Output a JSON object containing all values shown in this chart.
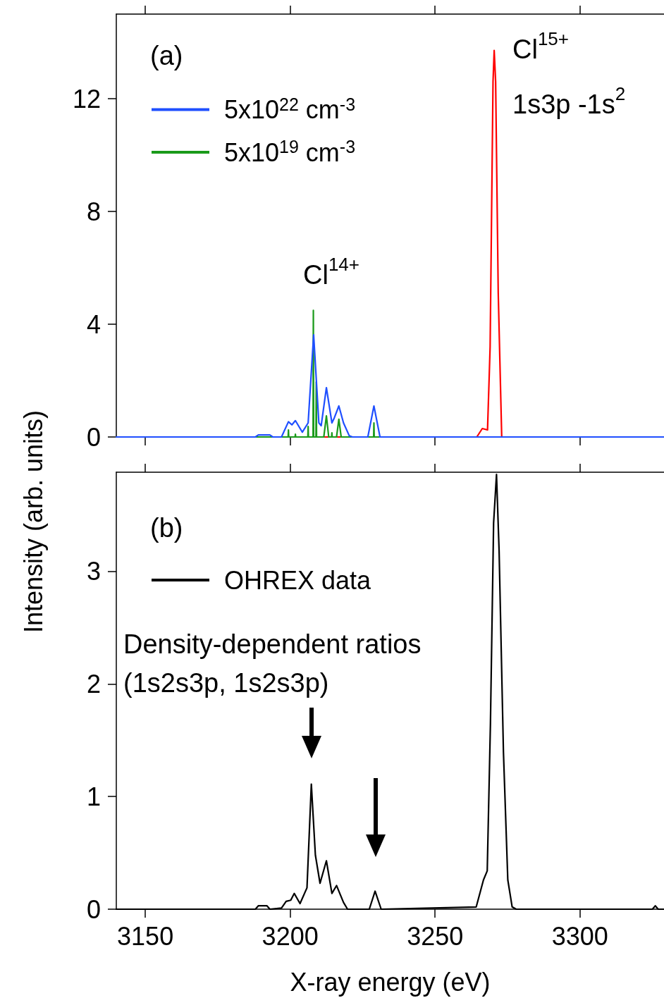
{
  "chart_data": [
    {
      "type": "line",
      "ylabel": "Intensity (arb. units)",
      "legend": "top left",
      "marker": "none",
      "grid": false,
      "tick_labels": "y",
      "xlim": [
        3140,
        3329
      ],
      "xticks": [
        3150,
        3200,
        3250,
        3300
      ],
      "ylim": [
        0,
        15
      ],
      "yticks": [
        0,
        4,
        8,
        12
      ],
      "annotations": [
        "(a)",
        "Cl$^{14+}$",
        "Cl$^{15+}$",
        "1s3p -1s$^{2}$"
      ],
      "series": [
        {
          "color": "#ff0000",
          "x": [
            3140,
            3264.4,
            3266.3,
            3268.1,
            3269.0,
            3270.0,
            3270.4,
            3270.9,
            3271.8,
            3273.0,
            3329
          ],
          "values": [
            0,
            0,
            0.3,
            0.25,
            3.2,
            12.6,
            13.71,
            12.6,
            5.1,
            0,
            0
          ]
        },
        {
          "name": "5x10$^{19}$ cm$^{-3}$",
          "color": "#1a9a1a",
          "x": [
            3140,
            3199.3,
            3199.4,
            3199.5,
            3201.7,
            3201.8,
            3201.9,
            3206.1,
            3206.2,
            3206.3,
            3207.9,
            3208.0,
            3208.1,
            3208.9,
            3209.0,
            3209.1,
            3211.6,
            3212.5,
            3213.3,
            3214.3,
            3214.4,
            3214.5,
            3216.0,
            3216.8,
            3217.6,
            3228.8,
            3228.9,
            3229.0,
            3329
          ],
          "values": [
            0,
            0,
            0.25,
            0,
            0,
            0.1,
            0,
            0,
            0.37,
            0,
            0,
            4.49,
            0,
            0,
            1.95,
            0,
            0,
            0.75,
            0,
            0,
            0.15,
            0,
            0,
            0.63,
            0,
            0,
            0.5,
            0,
            0
          ]
        },
        {
          "name": "5x10$^{22}$ cm$^{-3}$",
          "color": "#1f4fff",
          "x": [
            3140,
            3188,
            3189,
            3193,
            3194,
            3197,
            3199.4,
            3200.6,
            3201.8,
            3204.2,
            3206.2,
            3208.1,
            3209.9,
            3210.7,
            3212.5,
            3214.4,
            3215.2,
            3216.8,
            3218.4,
            3220.4,
            3221.5,
            3226.8,
            3228.9,
            3231,
            3329
          ],
          "values": [
            0,
            0,
            0.07,
            0.07,
            0,
            0,
            0.54,
            0.43,
            0.58,
            0.17,
            0.5,
            3.62,
            0.5,
            0.4,
            1.75,
            0.5,
            0.67,
            1.1,
            0.5,
            0.04,
            0,
            0,
            1.1,
            0,
            0
          ]
        }
      ]
    },
    {
      "type": "line",
      "xlabel": "X-ray energy (eV)",
      "legend": "top left",
      "marker": "none",
      "grid": false,
      "xlim": [
        3140,
        3329
      ],
      "xticks": [
        3150,
        3200,
        3250,
        3300
      ],
      "ylim": [
        0,
        3.88
      ],
      "yticks": [
        0,
        1,
        2,
        3
      ],
      "annotations": [
        "(b)",
        "Density-dependent ratios\n(1s2s3p, 1s2s3p)"
      ],
      "series": [
        {
          "name": "OHREX data",
          "color": "#000000",
          "x": [
            3140,
            3188,
            3189,
            3192,
            3193,
            3197,
            3198.6,
            3200.2,
            3201.4,
            3203.4,
            3205.8,
            3207.3,
            3208.7,
            3210.3,
            3212.5,
            3214.4,
            3216.0,
            3218.4,
            3219.8,
            3227.3,
            3229.3,
            3231.4,
            3264.2,
            3266.7,
            3268.0,
            3269.1,
            3270.2,
            3271.2,
            3272.1,
            3273.6,
            3275.1,
            3276.6,
            3278,
            3325,
            3326,
            3327,
            3329
          ],
          "values": [
            0,
            0,
            0.03,
            0.03,
            0,
            0.01,
            0.07,
            0.08,
            0.14,
            0.05,
            0.19,
            1.11,
            0.48,
            0.23,
            0.43,
            0.14,
            0.21,
            0.06,
            0,
            0,
            0.16,
            0,
            0.02,
            0.26,
            0.34,
            1.64,
            3.43,
            3.86,
            3.18,
            1.39,
            0.26,
            0.02,
            0,
            0,
            0.03,
            0,
            0
          ]
        }
      ]
    }
  ]
}
